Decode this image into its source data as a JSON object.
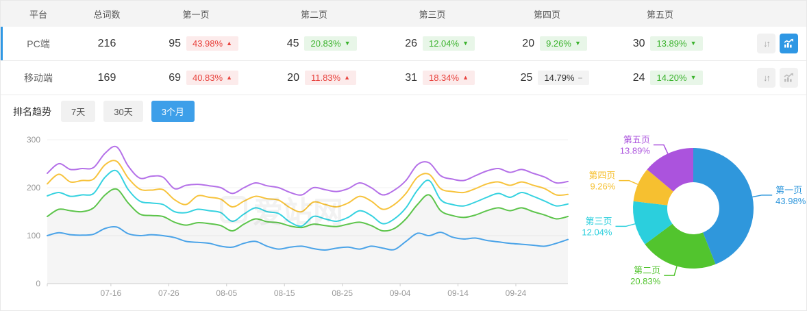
{
  "table": {
    "headers": {
      "platform": "平台",
      "total": "总词数",
      "pages": [
        "第一页",
        "第二页",
        "第三页",
        "第四页",
        "第五页"
      ]
    },
    "rows": [
      {
        "platform": "PC端",
        "total": "216",
        "selected": true,
        "chart_active": true,
        "pages": [
          {
            "count": "95",
            "pct": "43.98%",
            "trend": "up"
          },
          {
            "count": "45",
            "pct": "20.83%",
            "trend": "down"
          },
          {
            "count": "26",
            "pct": "12.04%",
            "trend": "down"
          },
          {
            "count": "20",
            "pct": "9.26%",
            "trend": "down"
          },
          {
            "count": "30",
            "pct": "13.89%",
            "trend": "down"
          }
        ]
      },
      {
        "platform": "移动端",
        "total": "169",
        "selected": false,
        "chart_active": false,
        "pages": [
          {
            "count": "69",
            "pct": "40.83%",
            "trend": "up"
          },
          {
            "count": "20",
            "pct": "11.83%",
            "trend": "up"
          },
          {
            "count": "31",
            "pct": "18.34%",
            "trend": "up"
          },
          {
            "count": "25",
            "pct": "14.79%",
            "trend": "flat"
          },
          {
            "count": "24",
            "pct": "14.20%",
            "trend": "down"
          }
        ]
      }
    ]
  },
  "trend_section": {
    "title": "排名趋势",
    "tabs": [
      {
        "label": "7天",
        "active": false
      },
      {
        "label": "30天",
        "active": false
      },
      {
        "label": "3个月",
        "active": true
      }
    ]
  },
  "watermark": {
    "text": "爱站网"
  },
  "colors": {
    "accent_blue": "#2E97E4",
    "tab_active_blue": "#3D9FE9",
    "up_red": "#E8433E",
    "up_red_bg": "#FCEBEB",
    "down_green": "#3CB32E",
    "down_green_bg": "#E8F6E8",
    "flat_gray_bg": "#F3F3F3"
  },
  "chart_data": [
    {
      "type": "line",
      "title": "排名趋势 3个月",
      "grid": true,
      "ylim": [
        0,
        300
      ],
      "y_ticks": [
        0,
        100,
        200,
        300
      ],
      "x_ticks": [
        "07-16",
        "07-26",
        "08-05",
        "08-15",
        "08-25",
        "09-04",
        "09-14",
        "09-24"
      ],
      "x_tick_days": [
        11,
        21,
        31,
        41,
        51,
        61,
        71,
        81
      ],
      "total_days": 90,
      "legend": "none",
      "series": [
        {
          "name": "第一页",
          "color": "#4AA3E8",
          "values": [
            100,
            106,
            102,
            101,
            103,
            115,
            118,
            104,
            100,
            102,
            100,
            96,
            88,
            86,
            84,
            78,
            76,
            84,
            88,
            78,
            72,
            76,
            78,
            73,
            70,
            74,
            76,
            72,
            78,
            74,
            71,
            88,
            105,
            100,
            107,
            97,
            93,
            95,
            90,
            87,
            84,
            82,
            80,
            78,
            84,
            92
          ]
        },
        {
          "name": "第二页",
          "color": "#5CC44A",
          "area_fill": true,
          "values": [
            140,
            155,
            152,
            150,
            158,
            185,
            197,
            168,
            145,
            142,
            140,
            128,
            122,
            127,
            125,
            121,
            110,
            124,
            135,
            129,
            127,
            120,
            117,
            124,
            121,
            119,
            124,
            128,
            121,
            110,
            115,
            135,
            165,
            185,
            152,
            142,
            138,
            143,
            152,
            158,
            152,
            158,
            150,
            143,
            135,
            140
          ]
        },
        {
          "name": "第三页",
          "color": "#36D2E0",
          "values": [
            183,
            190,
            182,
            185,
            188,
            222,
            235,
            196,
            172,
            168,
            165,
            150,
            148,
            155,
            152,
            148,
            130,
            145,
            158,
            150,
            146,
            128,
            120,
            140,
            135,
            130,
            138,
            152,
            142,
            125,
            135,
            158,
            195,
            215,
            175,
            165,
            162,
            170,
            180,
            188,
            180,
            190,
            182,
            172,
            162,
            166
          ]
        },
        {
          "name": "第四页",
          "color": "#F7C33C",
          "values": [
            208,
            228,
            212,
            215,
            218,
            248,
            255,
            220,
            197,
            195,
            196,
            175,
            165,
            183,
            180,
            176,
            160,
            172,
            182,
            177,
            174,
            158,
            150,
            170,
            165,
            160,
            168,
            182,
            172,
            155,
            165,
            188,
            222,
            228,
            198,
            192,
            190,
            198,
            208,
            212,
            205,
            212,
            205,
            198,
            185,
            186
          ]
        },
        {
          "name": "第五页",
          "color": "#B470E8",
          "values": [
            230,
            250,
            238,
            240,
            242,
            272,
            285,
            245,
            220,
            224,
            222,
            198,
            205,
            207,
            204,
            200,
            188,
            200,
            210,
            204,
            200,
            190,
            185,
            200,
            196,
            192,
            198,
            210,
            200,
            185,
            195,
            215,
            248,
            252,
            225,
            218,
            215,
            225,
            235,
            240,
            232,
            238,
            230,
            222,
            210,
            213
          ]
        }
      ]
    },
    {
      "type": "pie",
      "donut": true,
      "start_angle_deg": 0,
      "direction": "clockwise-from-top",
      "slices": [
        {
          "label": "第一页",
          "value": 43.98,
          "color": "#2F97DC"
        },
        {
          "label": "第二页",
          "value": 20.83,
          "color": "#52C42E"
        },
        {
          "label": "第三页",
          "value": 12.04,
          "color": "#2BCFDD"
        },
        {
          "label": "第四页",
          "value": 9.26,
          "color": "#F6C030"
        },
        {
          "label": "第五页",
          "value": 13.89,
          "color": "#AB53DD"
        }
      ]
    }
  ]
}
